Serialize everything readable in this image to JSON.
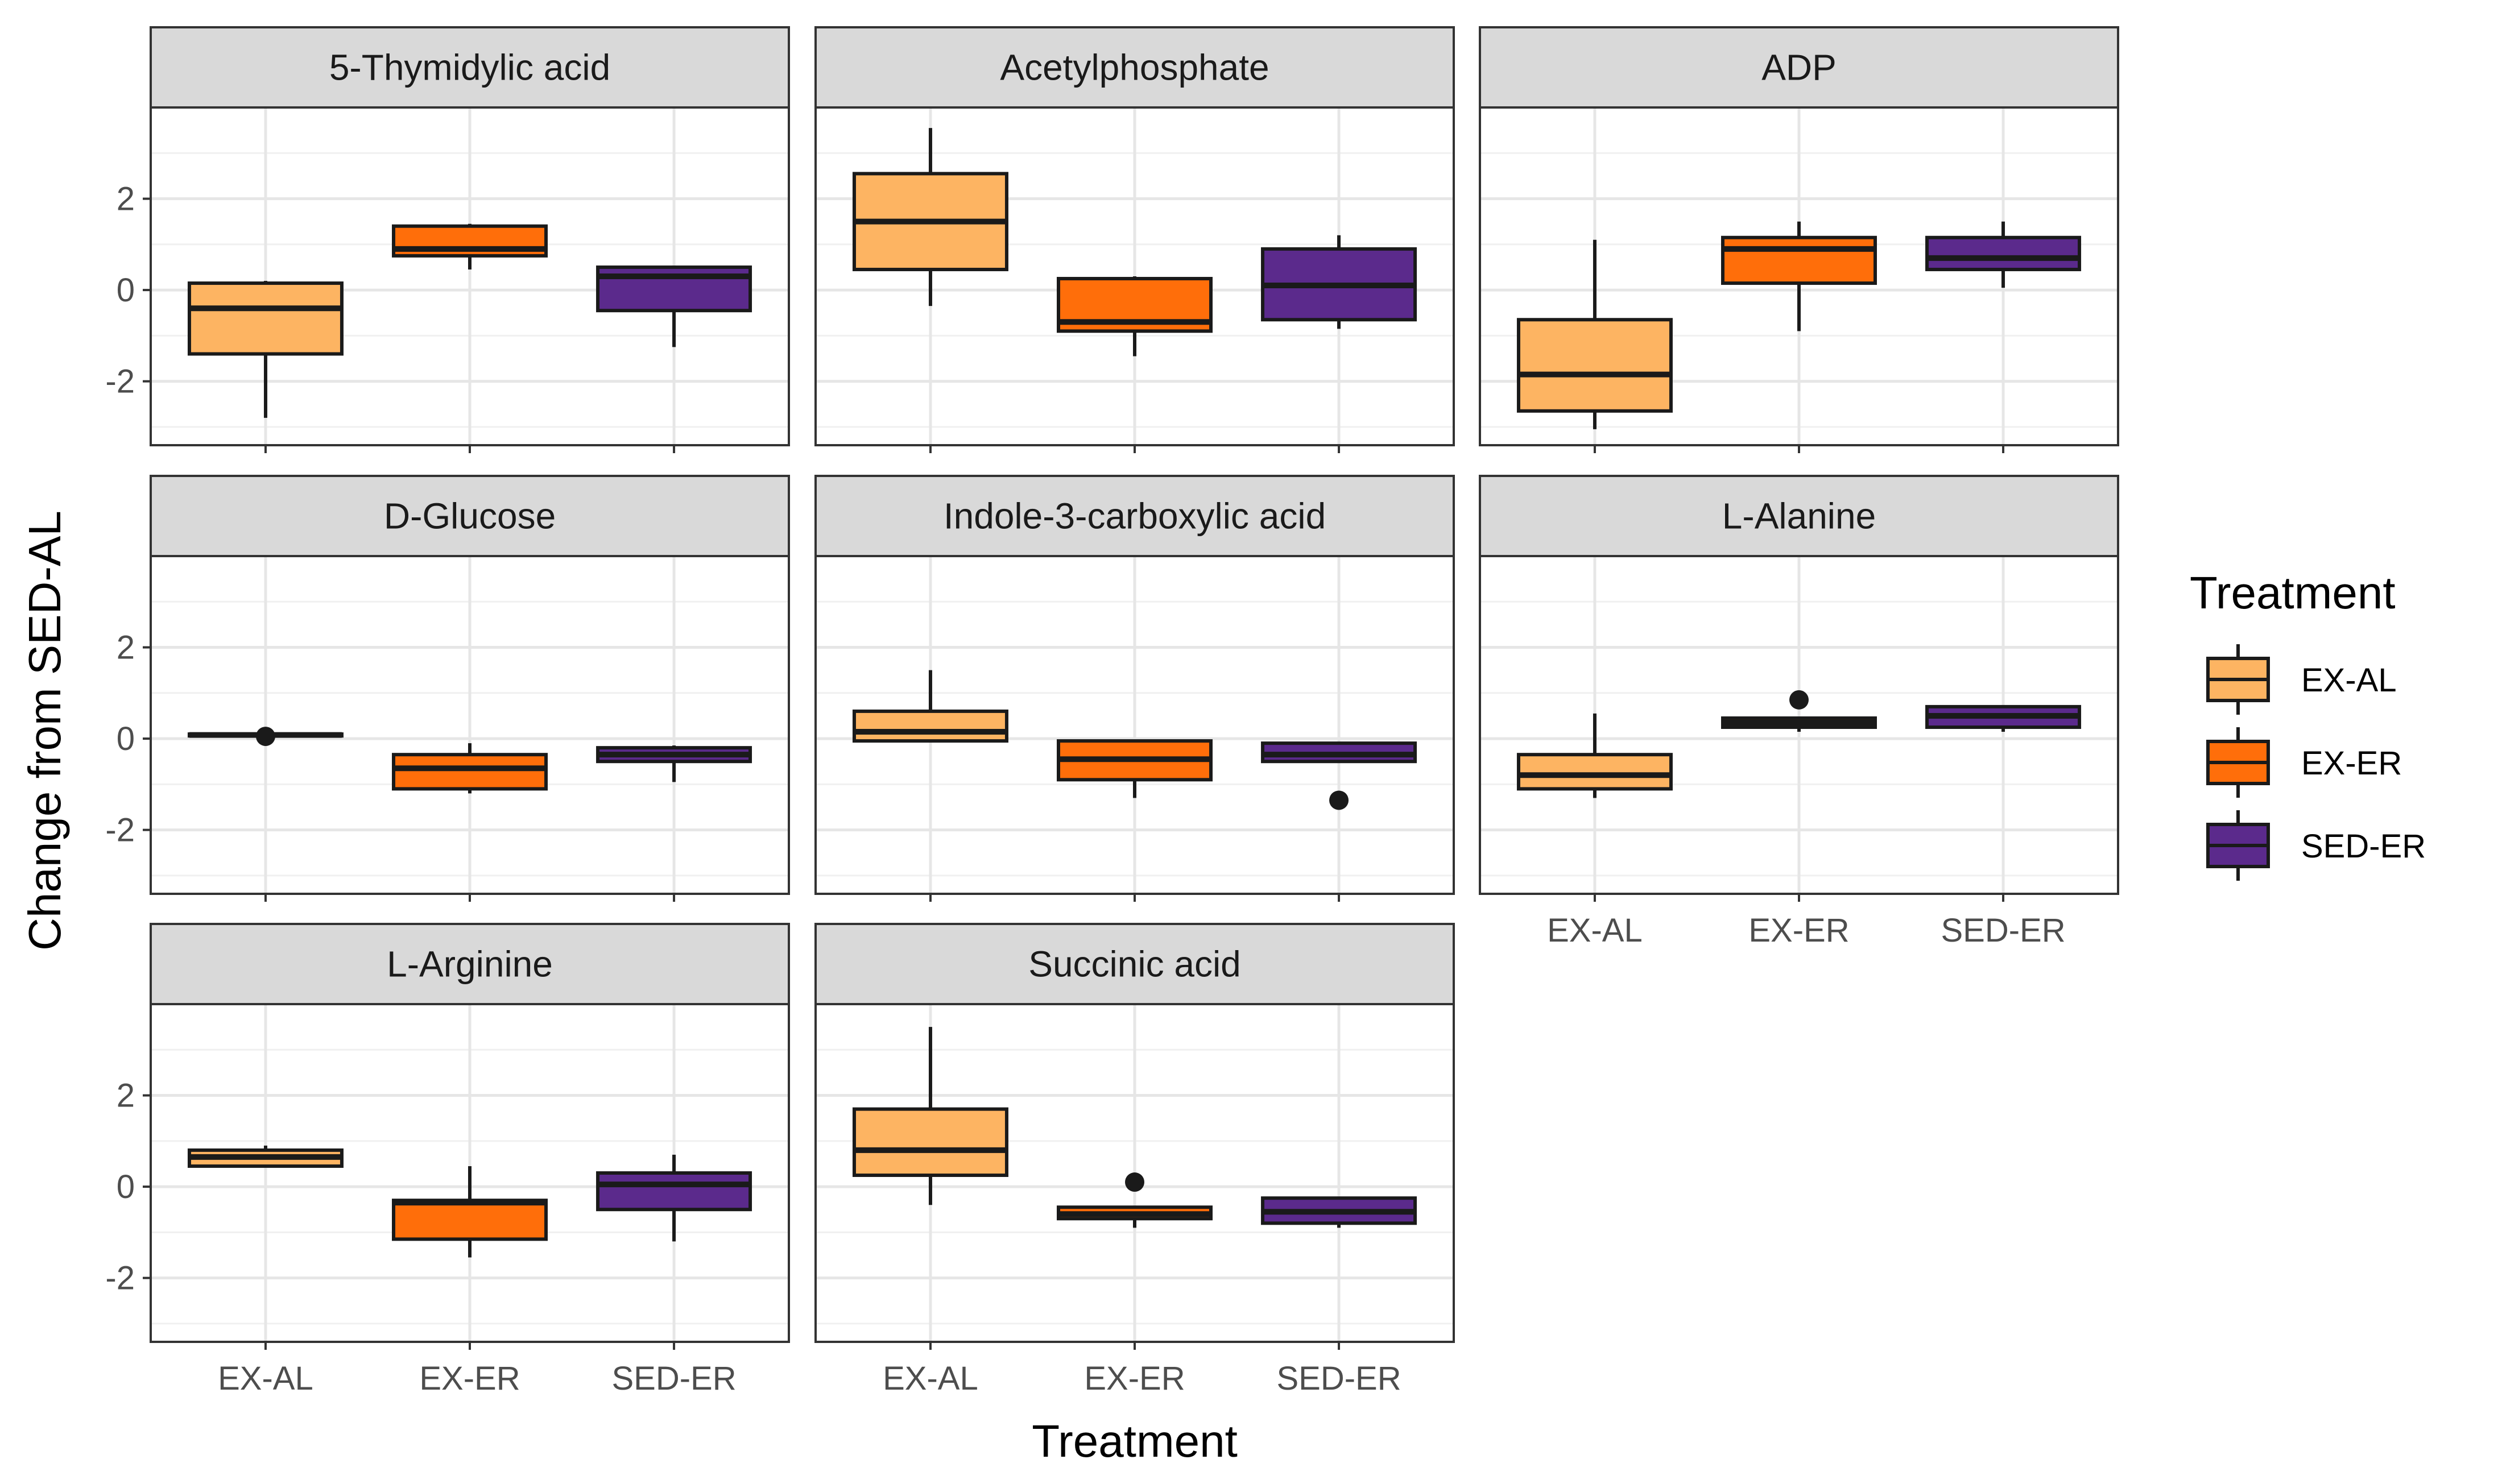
{
  "chart_data": {
    "type": "boxplot",
    "xlabel": "Treatment",
    "ylabel": "Change from SED-AL",
    "ylim": [
      -3.4,
      4.0
    ],
    "yticks": [
      -2,
      0,
      2
    ],
    "categories": [
      "EX-AL",
      "EX-ER",
      "SED-ER"
    ],
    "colors": {
      "EX-AL": "#FDB462",
      "EX-ER": "#FF6E0A",
      "SED-ER": "#5B2A8C"
    },
    "legend": {
      "title": "Treatment",
      "position": "right",
      "items": [
        "EX-AL",
        "EX-ER",
        "SED-ER"
      ]
    },
    "panels": [
      {
        "title": "5-Thymidylic acid",
        "boxes": [
          {
            "group": "EX-AL",
            "low": -2.8,
            "q1": -1.4,
            "median": -0.4,
            "q3": 0.15,
            "high": 0.2,
            "outliers": []
          },
          {
            "group": "EX-ER",
            "low": 0.45,
            "q1": 0.75,
            "median": 0.9,
            "q3": 1.4,
            "high": 1.45,
            "outliers": []
          },
          {
            "group": "SED-ER",
            "low": -1.25,
            "q1": -0.45,
            "median": 0.3,
            "q3": 0.5,
            "high": 0.5,
            "outliers": []
          }
        ]
      },
      {
        "title": "Acetylphosphate",
        "boxes": [
          {
            "group": "EX-AL",
            "low": -0.35,
            "q1": 0.45,
            "median": 1.5,
            "q3": 2.55,
            "high": 3.55,
            "outliers": []
          },
          {
            "group": "EX-ER",
            "low": -1.45,
            "q1": -0.9,
            "median": -0.7,
            "q3": 0.25,
            "high": 0.3,
            "outliers": []
          },
          {
            "group": "SED-ER",
            "low": -0.85,
            "q1": -0.65,
            "median": 0.1,
            "q3": 0.9,
            "high": 1.2,
            "outliers": []
          }
        ]
      },
      {
        "title": "ADP",
        "boxes": [
          {
            "group": "EX-AL",
            "low": -3.05,
            "q1": -2.65,
            "median": -1.85,
            "q3": -0.65,
            "high": 1.1,
            "outliers": []
          },
          {
            "group": "EX-ER",
            "low": -0.9,
            "q1": 0.15,
            "median": 0.9,
            "q3": 1.15,
            "high": 1.5,
            "outliers": []
          },
          {
            "group": "SED-ER",
            "low": 0.05,
            "q1": 0.45,
            "median": 0.7,
            "q3": 1.15,
            "high": 1.5,
            "outliers": []
          }
        ]
      },
      {
        "title": "D-Glucose",
        "boxes": [
          {
            "group": "EX-AL",
            "low": 0.05,
            "q1": 0.06,
            "median": 0.08,
            "q3": 0.1,
            "high": 0.12,
            "outliers": [
              0.05
            ]
          },
          {
            "group": "EX-ER",
            "low": -1.2,
            "q1": -1.1,
            "median": -0.65,
            "q3": -0.35,
            "high": -0.1,
            "outliers": []
          },
          {
            "group": "SED-ER",
            "low": -0.95,
            "q1": -0.5,
            "median": -0.35,
            "q3": -0.2,
            "high": -0.15,
            "outliers": []
          }
        ]
      },
      {
        "title": "Indole-3-carboxylic acid",
        "boxes": [
          {
            "group": "EX-AL",
            "low": -0.05,
            "q1": -0.05,
            "median": 0.15,
            "q3": 0.6,
            "high": 1.5,
            "outliers": []
          },
          {
            "group": "EX-ER",
            "low": -1.3,
            "q1": -0.9,
            "median": -0.45,
            "q3": -0.05,
            "high": -0.05,
            "outliers": []
          },
          {
            "group": "SED-ER",
            "low": -0.5,
            "q1": -0.5,
            "median": -0.35,
            "q3": -0.1,
            "high": -0.1,
            "outliers": [
              -1.35
            ]
          }
        ]
      },
      {
        "title": "L-Alanine",
        "boxes": [
          {
            "group": "EX-AL",
            "low": -1.3,
            "q1": -1.1,
            "median": -0.8,
            "q3": -0.35,
            "high": 0.55,
            "outliers": []
          },
          {
            "group": "EX-ER",
            "low": 0.15,
            "q1": 0.25,
            "median": 0.35,
            "q3": 0.45,
            "high": 0.45,
            "outliers": [
              0.85
            ]
          },
          {
            "group": "SED-ER",
            "low": 0.15,
            "q1": 0.25,
            "median": 0.5,
            "q3": 0.7,
            "high": 0.7,
            "outliers": []
          }
        ]
      },
      {
        "title": "L-Arginine",
        "boxes": [
          {
            "group": "EX-AL",
            "low": 0.45,
            "q1": 0.45,
            "median": 0.65,
            "q3": 0.8,
            "high": 0.9,
            "outliers": []
          },
          {
            "group": "EX-ER",
            "low": -1.55,
            "q1": -1.15,
            "median": -0.35,
            "q3": -0.3,
            "high": 0.45,
            "outliers": []
          },
          {
            "group": "SED-ER",
            "low": -1.2,
            "q1": -0.5,
            "median": 0.05,
            "q3": 0.3,
            "high": 0.7,
            "outliers": []
          }
        ]
      },
      {
        "title": "Succinic acid",
        "boxes": [
          {
            "group": "EX-AL",
            "low": -0.4,
            "q1": 0.25,
            "median": 0.8,
            "q3": 1.7,
            "high": 3.5,
            "outliers": []
          },
          {
            "group": "EX-ER",
            "low": -0.9,
            "q1": -0.7,
            "median": -0.6,
            "q3": -0.45,
            "high": -0.45,
            "outliers": [
              0.1
            ]
          },
          {
            "group": "SED-ER",
            "low": -0.9,
            "q1": -0.8,
            "median": -0.55,
            "q3": -0.25,
            "high": -0.25,
            "outliers": []
          }
        ]
      }
    ]
  }
}
